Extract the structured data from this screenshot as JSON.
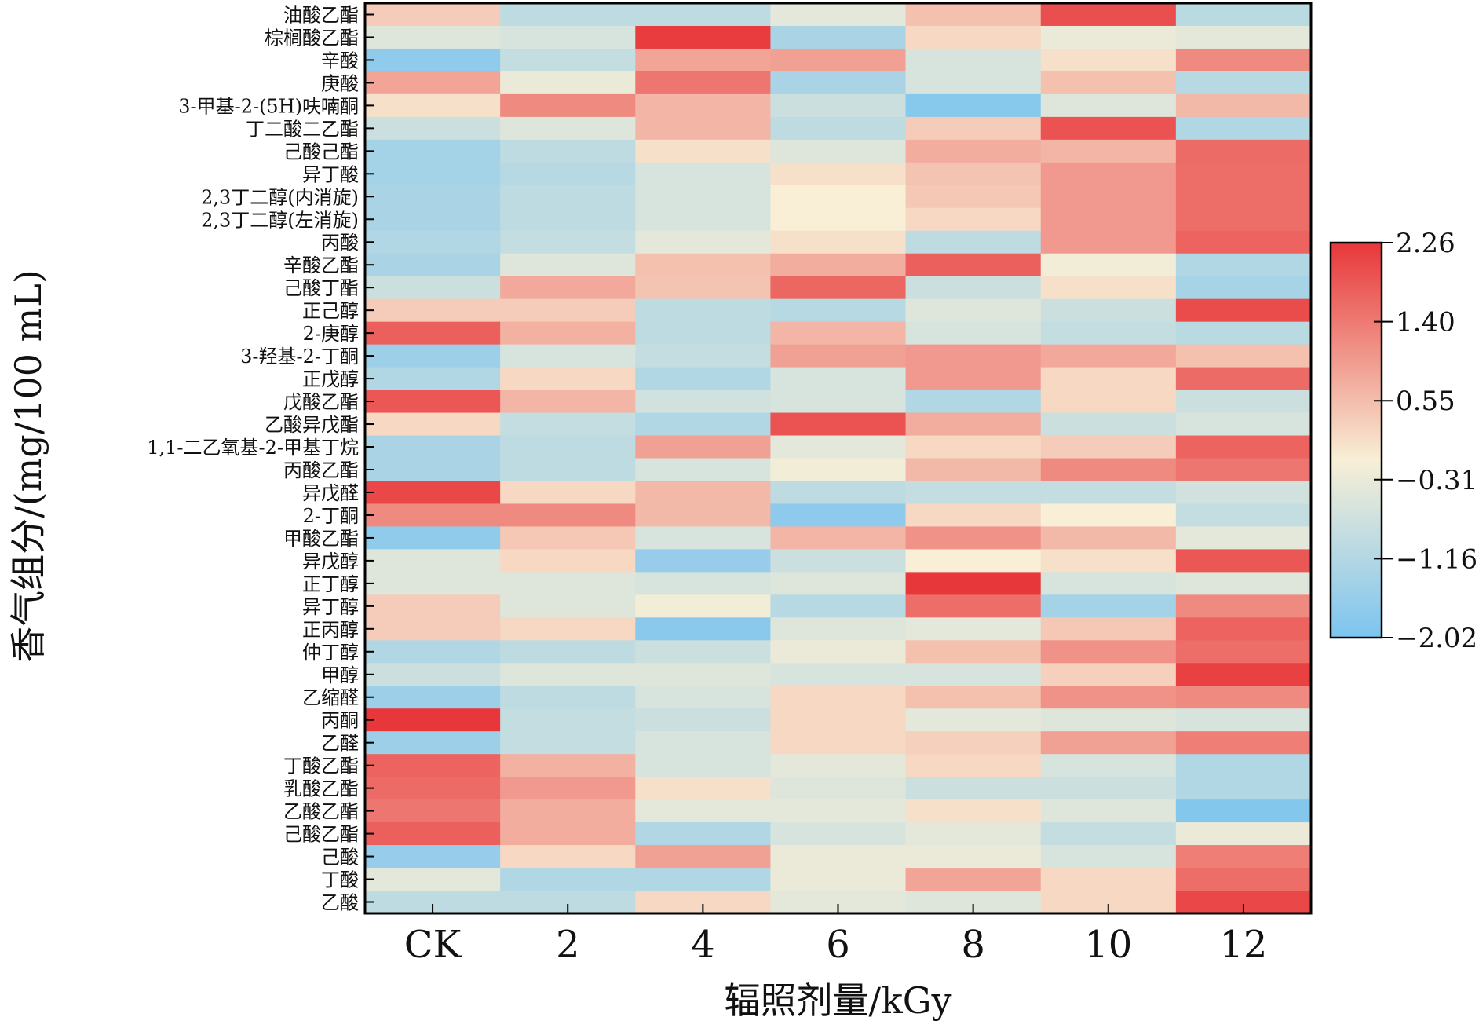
{
  "chart_data": {
    "type": "heatmap",
    "xlabel": "辐照剂量/kGy",
    "ylabel": "香气组分/(mg/100 mL)",
    "categories": [
      "CK",
      "2",
      "4",
      "6",
      "8",
      "10",
      "12"
    ],
    "rows": [
      {
        "label": "油酸乙酯",
        "values": [
          0.35,
          -1.0,
          -1.0,
          -0.4,
          0.5,
          1.95,
          -1.05
        ]
      },
      {
        "label": "棕榈酸乙酯",
        "values": [
          -0.5,
          -0.6,
          2.2,
          -1.3,
          0.2,
          -0.3,
          -0.4
        ]
      },
      {
        "label": "辛酸",
        "values": [
          -1.7,
          -0.9,
          0.85,
          0.9,
          -0.6,
          0.1,
          1.2
        ]
      },
      {
        "label": "庚酸",
        "values": [
          0.85,
          -0.3,
          1.45,
          -1.3,
          -0.6,
          0.5,
          -1.1
        ]
      },
      {
        "label": "3-甲基-2-(5H)呋喃酮",
        "values": [
          0.1,
          1.2,
          0.65,
          -0.8,
          -1.85,
          -0.5,
          0.6
        ]
      },
      {
        "label": "丁二酸二乙酯",
        "values": [
          -0.8,
          -0.5,
          0.65,
          -1.0,
          0.35,
          1.9,
          -1.2
        ]
      },
      {
        "label": "己酸己酯",
        "values": [
          -1.4,
          -1.0,
          0.1,
          -0.5,
          0.75,
          0.65,
          1.6
        ]
      },
      {
        "label": "异丁酸",
        "values": [
          -1.4,
          -1.1,
          -0.6,
          0.1,
          0.45,
          1.0,
          1.55
        ]
      },
      {
        "label": "2,3丁二醇(内消旋)",
        "values": [
          -1.3,
          -1.0,
          -0.6,
          -0.1,
          0.4,
          1.0,
          1.55
        ]
      },
      {
        "label": "2,3丁二醇(左消旋)",
        "values": [
          -1.3,
          -1.0,
          -0.6,
          -0.1,
          0.2,
          1.0,
          1.55
        ]
      },
      {
        "label": "丙酸",
        "values": [
          -1.2,
          -0.9,
          -0.4,
          0.1,
          -1.0,
          1.0,
          1.7
        ]
      },
      {
        "label": "辛酸乙酯",
        "values": [
          -1.3,
          -0.5,
          0.5,
          0.75,
          1.75,
          -0.2,
          -1.2
        ]
      },
      {
        "label": "己酸丁酯",
        "values": [
          -0.8,
          0.8,
          0.45,
          1.65,
          -0.8,
          0.1,
          -1.35
        ]
      },
      {
        "label": "正己醇",
        "values": [
          0.35,
          0.35,
          -1.0,
          -1.1,
          -0.5,
          -0.8,
          2.0
        ]
      },
      {
        "label": "2-庚醇",
        "values": [
          1.75,
          0.7,
          -1.0,
          0.65,
          -0.6,
          -0.9,
          -1.05
        ]
      },
      {
        "label": "3-羟基-2-丁酮",
        "values": [
          -1.5,
          -0.6,
          -0.9,
          0.9,
          1.0,
          0.8,
          0.5
        ]
      },
      {
        "label": "正戊醇",
        "values": [
          -1.2,
          0.2,
          -1.2,
          -0.6,
          1.0,
          0.2,
          1.6
        ]
      },
      {
        "label": "戊酸乙酯",
        "values": [
          1.85,
          0.65,
          -0.7,
          -0.6,
          -1.2,
          0.2,
          -0.8
        ]
      },
      {
        "label": "乙酸异戊酯",
        "values": [
          0.2,
          -0.9,
          -1.2,
          1.9,
          0.75,
          -0.8,
          -0.6
        ]
      },
      {
        "label": "1,1-二乙氧基-2-甲基丁烷",
        "values": [
          -1.3,
          -1.0,
          0.9,
          -0.4,
          0.2,
          0.35,
          1.7
        ]
      },
      {
        "label": "丙酸乙酯",
        "values": [
          -1.3,
          -1.0,
          -0.6,
          -0.2,
          0.6,
          1.2,
          1.45
        ]
      },
      {
        "label": "异戊醛",
        "values": [
          2.05,
          0.2,
          0.6,
          -1.0,
          -0.9,
          -0.9,
          -0.7
        ]
      },
      {
        "label": "2-丁酮",
        "values": [
          1.2,
          1.2,
          0.6,
          -1.75,
          0.2,
          -0.1,
          -0.9
        ]
      },
      {
        "label": "甲酸乙酯",
        "values": [
          -1.7,
          0.4,
          -0.6,
          0.65,
          1.1,
          0.6,
          -0.4
        ]
      },
      {
        "label": "异戊醇",
        "values": [
          -0.5,
          0.2,
          -1.6,
          -0.8,
          -0.1,
          0.1,
          1.85
        ]
      },
      {
        "label": "正丁醇",
        "values": [
          -0.5,
          -0.5,
          -0.6,
          -0.5,
          2.26,
          -0.6,
          -0.5
        ]
      },
      {
        "label": "异丁醇",
        "values": [
          0.35,
          -0.5,
          -0.2,
          -1.1,
          1.55,
          -1.4,
          1.2
        ]
      },
      {
        "label": "正丙醇",
        "values": [
          0.35,
          0.2,
          -1.8,
          -0.5,
          -0.4,
          0.4,
          1.7
        ]
      },
      {
        "label": "仲丁醇",
        "values": [
          -1.2,
          -1.0,
          -0.8,
          -0.3,
          0.5,
          1.1,
          1.55
        ]
      },
      {
        "label": "甲醇",
        "values": [
          -0.8,
          -0.5,
          -0.5,
          -0.6,
          -0.6,
          0.3,
          2.15
        ]
      },
      {
        "label": "乙缩醛",
        "values": [
          -1.5,
          -1.0,
          -0.6,
          0.2,
          0.5,
          1.1,
          1.2
        ]
      },
      {
        "label": "丙酮",
        "values": [
          2.26,
          -0.9,
          -0.8,
          0.2,
          -0.4,
          -0.5,
          -0.6
        ]
      },
      {
        "label": "乙醛",
        "values": [
          -1.5,
          -0.9,
          -0.6,
          0.2,
          0.3,
          0.9,
          1.35
        ]
      },
      {
        "label": "丁酸乙酯",
        "values": [
          1.7,
          0.7,
          -0.6,
          -0.4,
          0.2,
          -0.6,
          -1.2
        ]
      },
      {
        "label": "乳酸乙酯",
        "values": [
          1.6,
          1.0,
          0.1,
          -0.5,
          -0.8,
          -0.8,
          -1.2
        ]
      },
      {
        "label": "乙酸乙酯",
        "values": [
          1.45,
          0.75,
          -0.4,
          -0.4,
          0.1,
          -0.5,
          -1.9
        ]
      },
      {
        "label": "己酸乙酯",
        "values": [
          1.75,
          0.75,
          -1.2,
          -0.6,
          -0.4,
          -0.9,
          -0.3
        ]
      },
      {
        "label": "己酸",
        "values": [
          -1.6,
          0.2,
          0.9,
          -0.3,
          -0.3,
          -0.6,
          1.35
        ]
      },
      {
        "label": "丁酸",
        "values": [
          -0.4,
          -1.2,
          -1.2,
          -0.3,
          0.85,
          0.2,
          1.55
        ]
      },
      {
        "label": "乙酸",
        "values": [
          -1.0,
          -1.0,
          0.2,
          -0.4,
          -0.5,
          0.2,
          2.05
        ]
      }
    ],
    "colorbar": {
      "min": -2.02,
      "max": 2.26,
      "ticks": [
        "2.26",
        "1.40",
        "0.55",
        "−0.31",
        "−1.16",
        "−2.02"
      ],
      "low_color": "#7cc4ef",
      "mid_color": "#f8efd6",
      "high_color": "#e8373a"
    }
  }
}
